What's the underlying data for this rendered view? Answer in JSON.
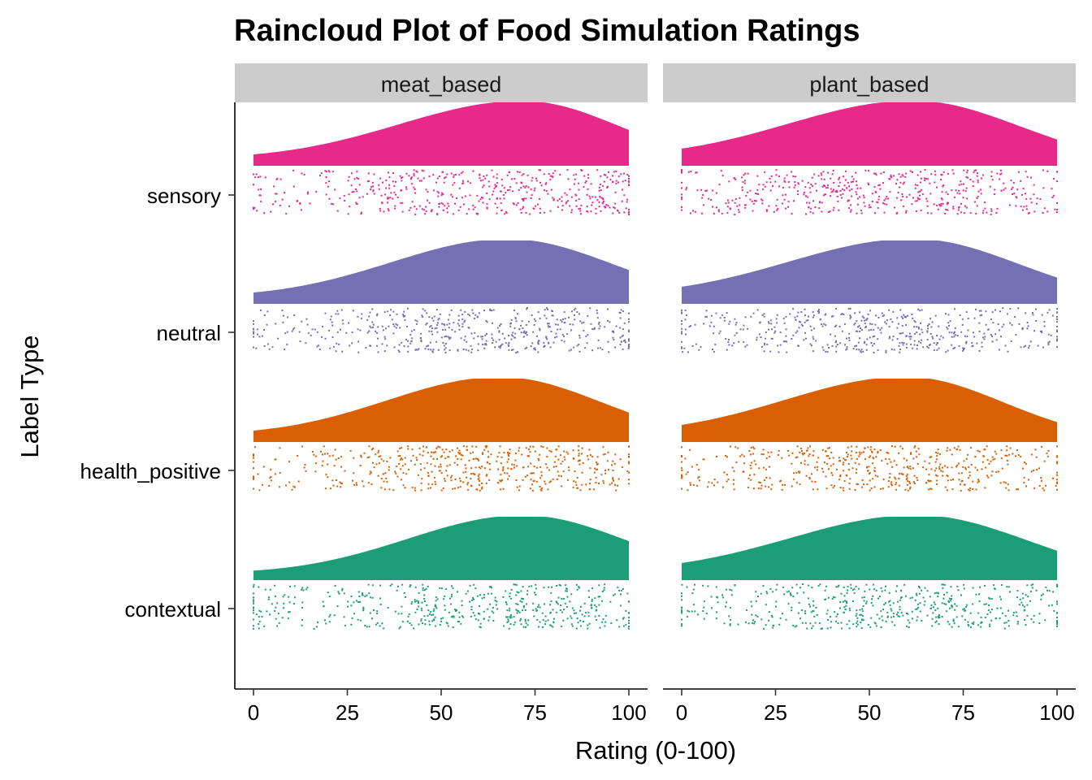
{
  "chart_data": {
    "type": "raincloud",
    "title": "Raincloud Plot of Food Simulation Ratings",
    "xlabel": "Rating (0-100)",
    "ylabel": "Label Type",
    "xlim": [
      0,
      100
    ],
    "x_ticks": [
      "0",
      "25",
      "50",
      "75",
      "100"
    ],
    "panels": [
      "meat_based",
      "plant_based"
    ],
    "categories": [
      "sensory",
      "neutral",
      "health_positive",
      "contextual"
    ],
    "colors": {
      "sensory": "#E7298A",
      "neutral": "#7570B3",
      "health_positive": "#D95F02",
      "contextual": "#1B9E77"
    },
    "strip_color": "#CCCCCC",
    "grid": false,
    "legend": "none",
    "density_mode": {
      "meat_based": {
        "sensory": 72,
        "neutral": 68,
        "health_positive": 66,
        "contextual": 72
      },
      "plant_based": {
        "sensory": 62,
        "neutral": 62,
        "health_positive": 60,
        "contextual": 63
      }
    },
    "density_at_0": {
      "meat_based": {
        "sensory": 0.18,
        "neutral": 0.18,
        "health_positive": 0.18,
        "contextual": 0.15
      },
      "plant_based": {
        "sensory": 0.27,
        "neutral": 0.27,
        "health_positive": 0.27,
        "contextual": 0.27
      }
    },
    "density_at_100": {
      "meat_based": {
        "sensory": 0.55,
        "neutral": 0.52,
        "health_positive": 0.45,
        "contextual": 0.6
      },
      "plant_based": {
        "sensory": 0.4,
        "neutral": 0.4,
        "health_positive": 0.3,
        "contextual": 0.45
      }
    },
    "approx_points_per_group": 520
  }
}
